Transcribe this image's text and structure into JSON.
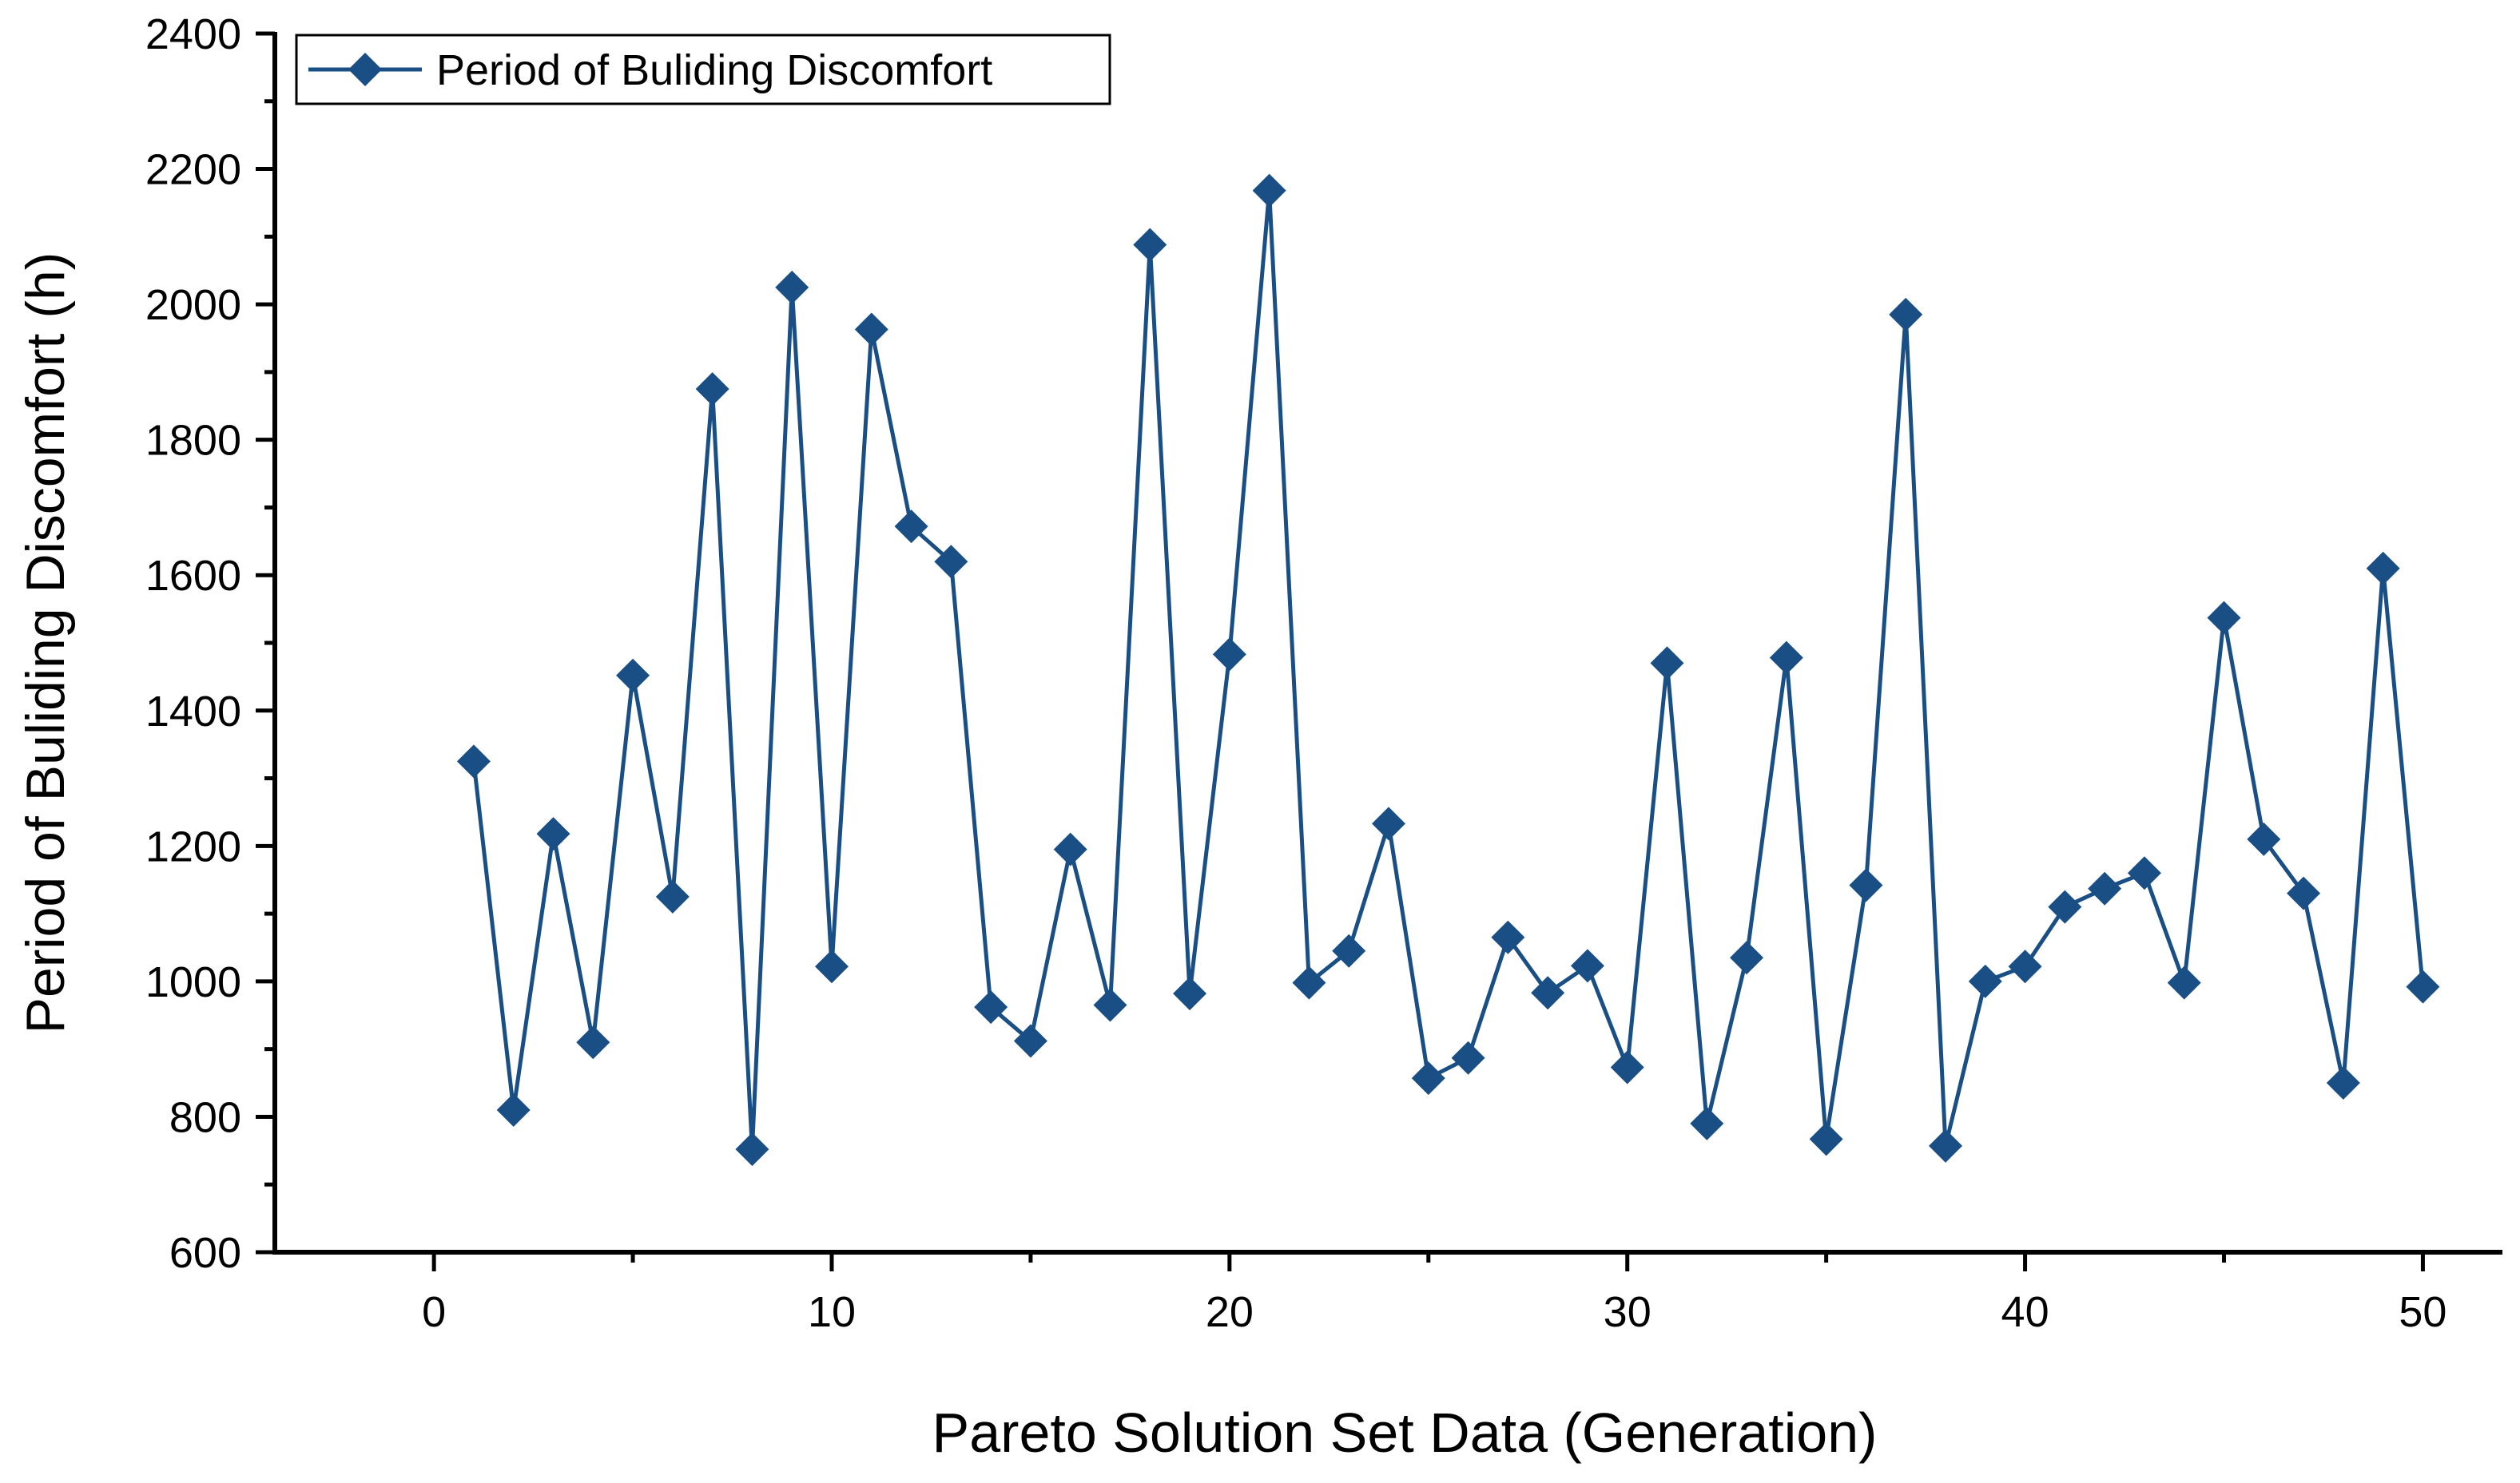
{
  "chart_data": {
    "type": "line",
    "title": "",
    "xlabel": "Pareto Solution Set Data (Generation)",
    "ylabel": "Period of Buliding Discomfort (h)",
    "xlim": [
      -4,
      52
    ],
    "ylim": [
      600,
      2400
    ],
    "x_ticks": [
      0,
      10,
      20,
      30,
      40,
      50
    ],
    "x_tick_labels": [
      "0",
      "10",
      "20",
      "30",
      "40",
      "50"
    ],
    "y_ticks": [
      600,
      800,
      1000,
      1200,
      1400,
      1600,
      1800,
      2000,
      2200,
      2400
    ],
    "y_tick_labels": [
      "600",
      "800",
      "1000",
      "1200",
      "1400",
      "1600",
      "1800",
      "2000",
      "2200",
      "2400"
    ],
    "grid": false,
    "legend_position": "top-left",
    "series": [
      {
        "name": "Period of Buliding Discomfort",
        "color": "#1a4f85",
        "marker": "diamond",
        "x": [
          1,
          2,
          3,
          4,
          5,
          6,
          7,
          8,
          9,
          10,
          11,
          12,
          13,
          14,
          15,
          16,
          17,
          18,
          19,
          20,
          21,
          22,
          23,
          24,
          25,
          26,
          27,
          28,
          29,
          30,
          31,
          32,
          33,
          34,
          35,
          36,
          37,
          38,
          39,
          40,
          41,
          42,
          43,
          44,
          45,
          46,
          47,
          48,
          49,
          50
        ],
        "values": [
          1325,
          810,
          1218,
          910,
          1452,
          1125,
          1875,
          752,
          2025,
          1022,
          1963,
          1672,
          1620,
          962,
          912,
          1195,
          965,
          2088,
          982,
          1483,
          2168,
          998,
          1045,
          1233,
          857,
          887,
          1065,
          983,
          1023,
          873,
          1470,
          790,
          1035,
          1478,
          767,
          1142,
          1985,
          757,
          1000,
          1022,
          1110,
          1137,
          1160,
          998,
          1537,
          1210,
          1130,
          850,
          1610,
          992
        ]
      }
    ]
  }
}
